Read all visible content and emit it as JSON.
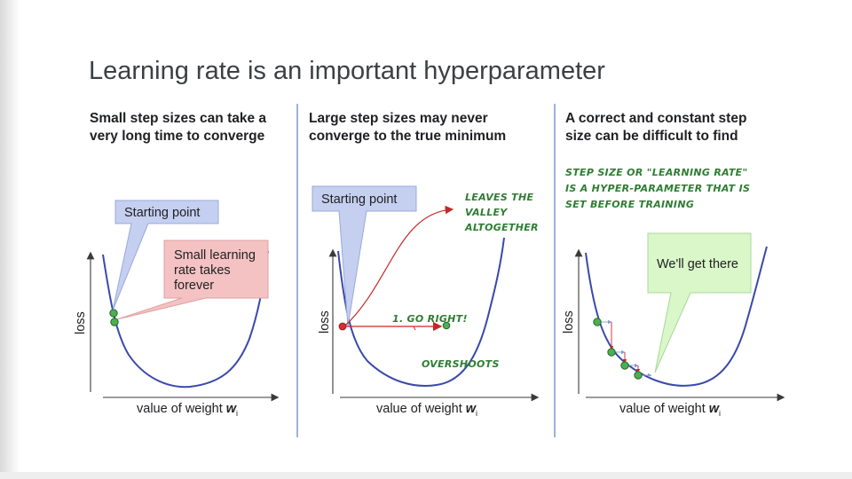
{
  "slide": {
    "title": "Learning rate is an important hyperparameter"
  },
  "panels": [
    {
      "heading_line1": "Small step sizes can take a",
      "heading_line2": "very long time to converge",
      "callout_start": "Starting point",
      "callout_pink_line1": "Small learning",
      "callout_pink_line2": "rate takes",
      "callout_pink_line3": "forever",
      "y_axis_label": "loss",
      "x_axis_label": "value of weight ",
      "x_axis_var": "w",
      "x_axis_sub": "i"
    },
    {
      "heading_line1": "Large step sizes may never",
      "heading_line2": "converge to the true minimum",
      "callout_start": "Starting point",
      "note_leaves_line1": "LEAVES THE",
      "note_leaves_line2": "VALLEY",
      "note_leaves_line3": "ALTOGETHER",
      "note_go_right": "1. GO RIGHT!",
      "note_overshoots": "OVERSHOOTS",
      "y_axis_label": "loss",
      "x_axis_label": "value of weight ",
      "x_axis_var": "w",
      "x_axis_sub": "i"
    },
    {
      "heading_line1": "A correct and constant step",
      "heading_line2": "size can be difficult to find",
      "note_line1": "STEP SIZE OR \"LEARNING RATE\"",
      "note_line2": "IS A HYPER-PARAMETER THAT IS",
      "note_line3": "SET BEFORE TRAINING",
      "callout_green": "We'll get there",
      "y_axis_label": "loss",
      "x_axis_label": "value of weight ",
      "x_axis_var": "w",
      "x_axis_sub": "i"
    }
  ],
  "colors": {
    "curve": "#3949ab",
    "callout_blue": "#c5cff0",
    "callout_pink": "#f4c2c2",
    "callout_green": "#d9f7c8",
    "ball": "#4caf50",
    "arrow_red": "#c62828",
    "handwriting_green": "#2e7d32",
    "divider": "#9fb3d9"
  }
}
